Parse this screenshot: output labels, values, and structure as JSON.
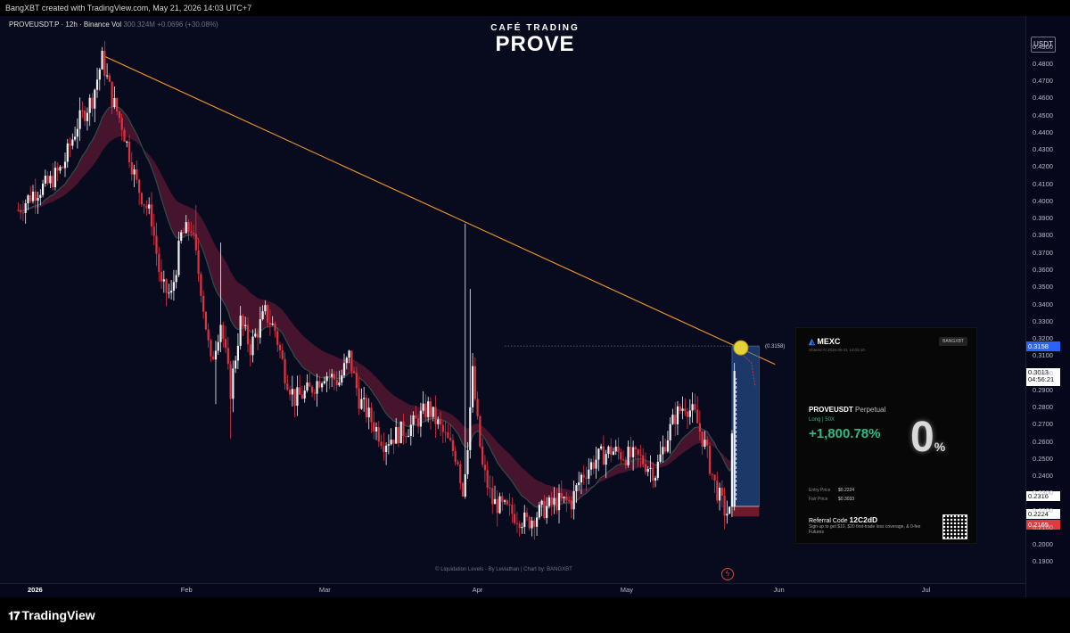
{
  "header": {
    "created_text": "BangXBT created with TradingView.com, May 21, 2026 14:03 UTC+7"
  },
  "symbol": {
    "name": "PROVEUSDT.P · 12h · Binance",
    "vol_label": "Vol",
    "vol_value": "300.324M",
    "change": "+0.0696 (+30.08%)"
  },
  "brand": {
    "small": "CAFÉ TRADING",
    "big": "PROVE"
  },
  "credit": "© Liquidation Levels - By Leviathan  |  Chart by: BANGXBT",
  "currency": "USDT",
  "tags": {
    "level": "(0.3158)",
    "target": "0.3158",
    "current_price": "0.3013",
    "countdown": "04:56:21",
    "ma_price": "0.2316",
    "entry": "0.2224",
    "stop": "0.2165"
  },
  "footer": {
    "brand": "TradingView"
  },
  "card": {
    "exchange": "MEXC",
    "badge": "BANGXBT",
    "subtitle": "Shared At 2026-05-21 14:03:10",
    "symbol": "PROVEUSDT",
    "contract": "Perpetual",
    "leverage": "Long | 50X",
    "gain": "+1,800.78%",
    "entry_label": "Entry Price",
    "entry_value": "$0.2224",
    "fair_label": "Fair Price",
    "fair_value": "$0.3033",
    "ref_label": "Referral Code",
    "ref_code": "12C2dD",
    "ref_note": "Sign up to get $10, $20 first-trade loss coverage, & 0-fee Futures",
    "promo_digit": "0",
    "promo_pct": "%"
  },
  "chart_data": {
    "type": "candlestick",
    "title": "PROVE",
    "symbol": "PROVEUSDT.P",
    "interval": "12h",
    "ylim": [
      0.185,
      0.495
    ],
    "yticks": [
      "0.4900",
      "0.4800",
      "0.4700",
      "0.4600",
      "0.4500",
      "0.4400",
      "0.4300",
      "0.4200",
      "0.4100",
      "0.4000",
      "0.3900",
      "0.3800",
      "0.3700",
      "0.3600",
      "0.3500",
      "0.3400",
      "0.3300",
      "0.3200",
      "0.3100",
      "0.3000",
      "0.2900",
      "0.2800",
      "0.2700",
      "0.2600",
      "0.2500",
      "0.2400",
      "0.2300",
      "0.2200",
      "0.2100",
      "0.2000",
      "0.1900"
    ],
    "xticks": [
      {
        "label": "2026",
        "day": 0
      },
      {
        "label": "Feb",
        "day": 31
      },
      {
        "label": "Mar",
        "day": 59
      },
      {
        "label": "Apr",
        "day": 90
      },
      {
        "label": "May",
        "day": 120
      },
      {
        "label": "Jun",
        "day": 151
      },
      {
        "label": "Jul",
        "day": 181
      }
    ],
    "anchors": [
      [
        -3,
        0.395
      ],
      [
        0,
        0.405
      ],
      [
        3,
        0.41
      ],
      [
        6,
        0.42
      ],
      [
        9,
        0.445
      ],
      [
        12,
        0.46
      ],
      [
        14,
        0.483
      ],
      [
        16,
        0.46
      ],
      [
        18,
        0.445
      ],
      [
        21,
        0.41
      ],
      [
        24,
        0.39
      ],
      [
        26,
        0.35
      ],
      [
        28,
        0.345
      ],
      [
        30,
        0.38
      ],
      [
        32,
        0.385
      ],
      [
        34,
        0.35
      ],
      [
        36,
        0.305
      ],
      [
        38,
        0.33
      ],
      [
        40,
        0.29
      ],
      [
        42,
        0.33
      ],
      [
        44,
        0.315
      ],
      [
        47,
        0.335
      ],
      [
        49,
        0.325
      ],
      [
        51,
        0.3
      ],
      [
        53,
        0.285
      ],
      [
        56,
        0.29
      ],
      [
        59,
        0.3
      ],
      [
        62,
        0.295
      ],
      [
        64,
        0.31
      ],
      [
        66,
        0.285
      ],
      [
        69,
        0.27
      ],
      [
        71,
        0.26
      ],
      [
        74,
        0.265
      ],
      [
        77,
        0.27
      ],
      [
        80,
        0.28
      ],
      [
        82,
        0.27
      ],
      [
        84,
        0.26
      ],
      [
        86,
        0.25
      ],
      [
        87,
        0.23
      ],
      [
        88,
        0.26
      ],
      [
        89,
        0.3
      ],
      [
        90,
        0.27
      ],
      [
        91,
        0.245
      ],
      [
        93,
        0.225
      ],
      [
        96,
        0.22
      ],
      [
        99,
        0.215
      ],
      [
        100,
        0.213
      ],
      [
        103,
        0.22
      ],
      [
        106,
        0.225
      ],
      [
        109,
        0.225
      ],
      [
        111,
        0.24
      ],
      [
        114,
        0.25
      ],
      [
        117,
        0.255
      ],
      [
        120,
        0.252
      ],
      [
        123,
        0.25
      ],
      [
        126,
        0.242
      ],
      [
        128,
        0.26
      ],
      [
        130,
        0.275
      ],
      [
        132,
        0.282
      ],
      [
        134,
        0.275
      ],
      [
        136,
        0.258
      ],
      [
        138,
        0.235
      ],
      [
        140,
        0.22
      ],
      [
        141,
        0.218
      ],
      [
        142,
        0.3013
      ]
    ],
    "trendline": {
      "start": [
        14.5,
        0.4845
      ],
      "end": [
        143,
        0.315
      ]
    },
    "position": {
      "entry": 0.2224,
      "stop": 0.2165,
      "target": 0.3158,
      "start_day": 141.5,
      "end_day": 147
    }
  }
}
